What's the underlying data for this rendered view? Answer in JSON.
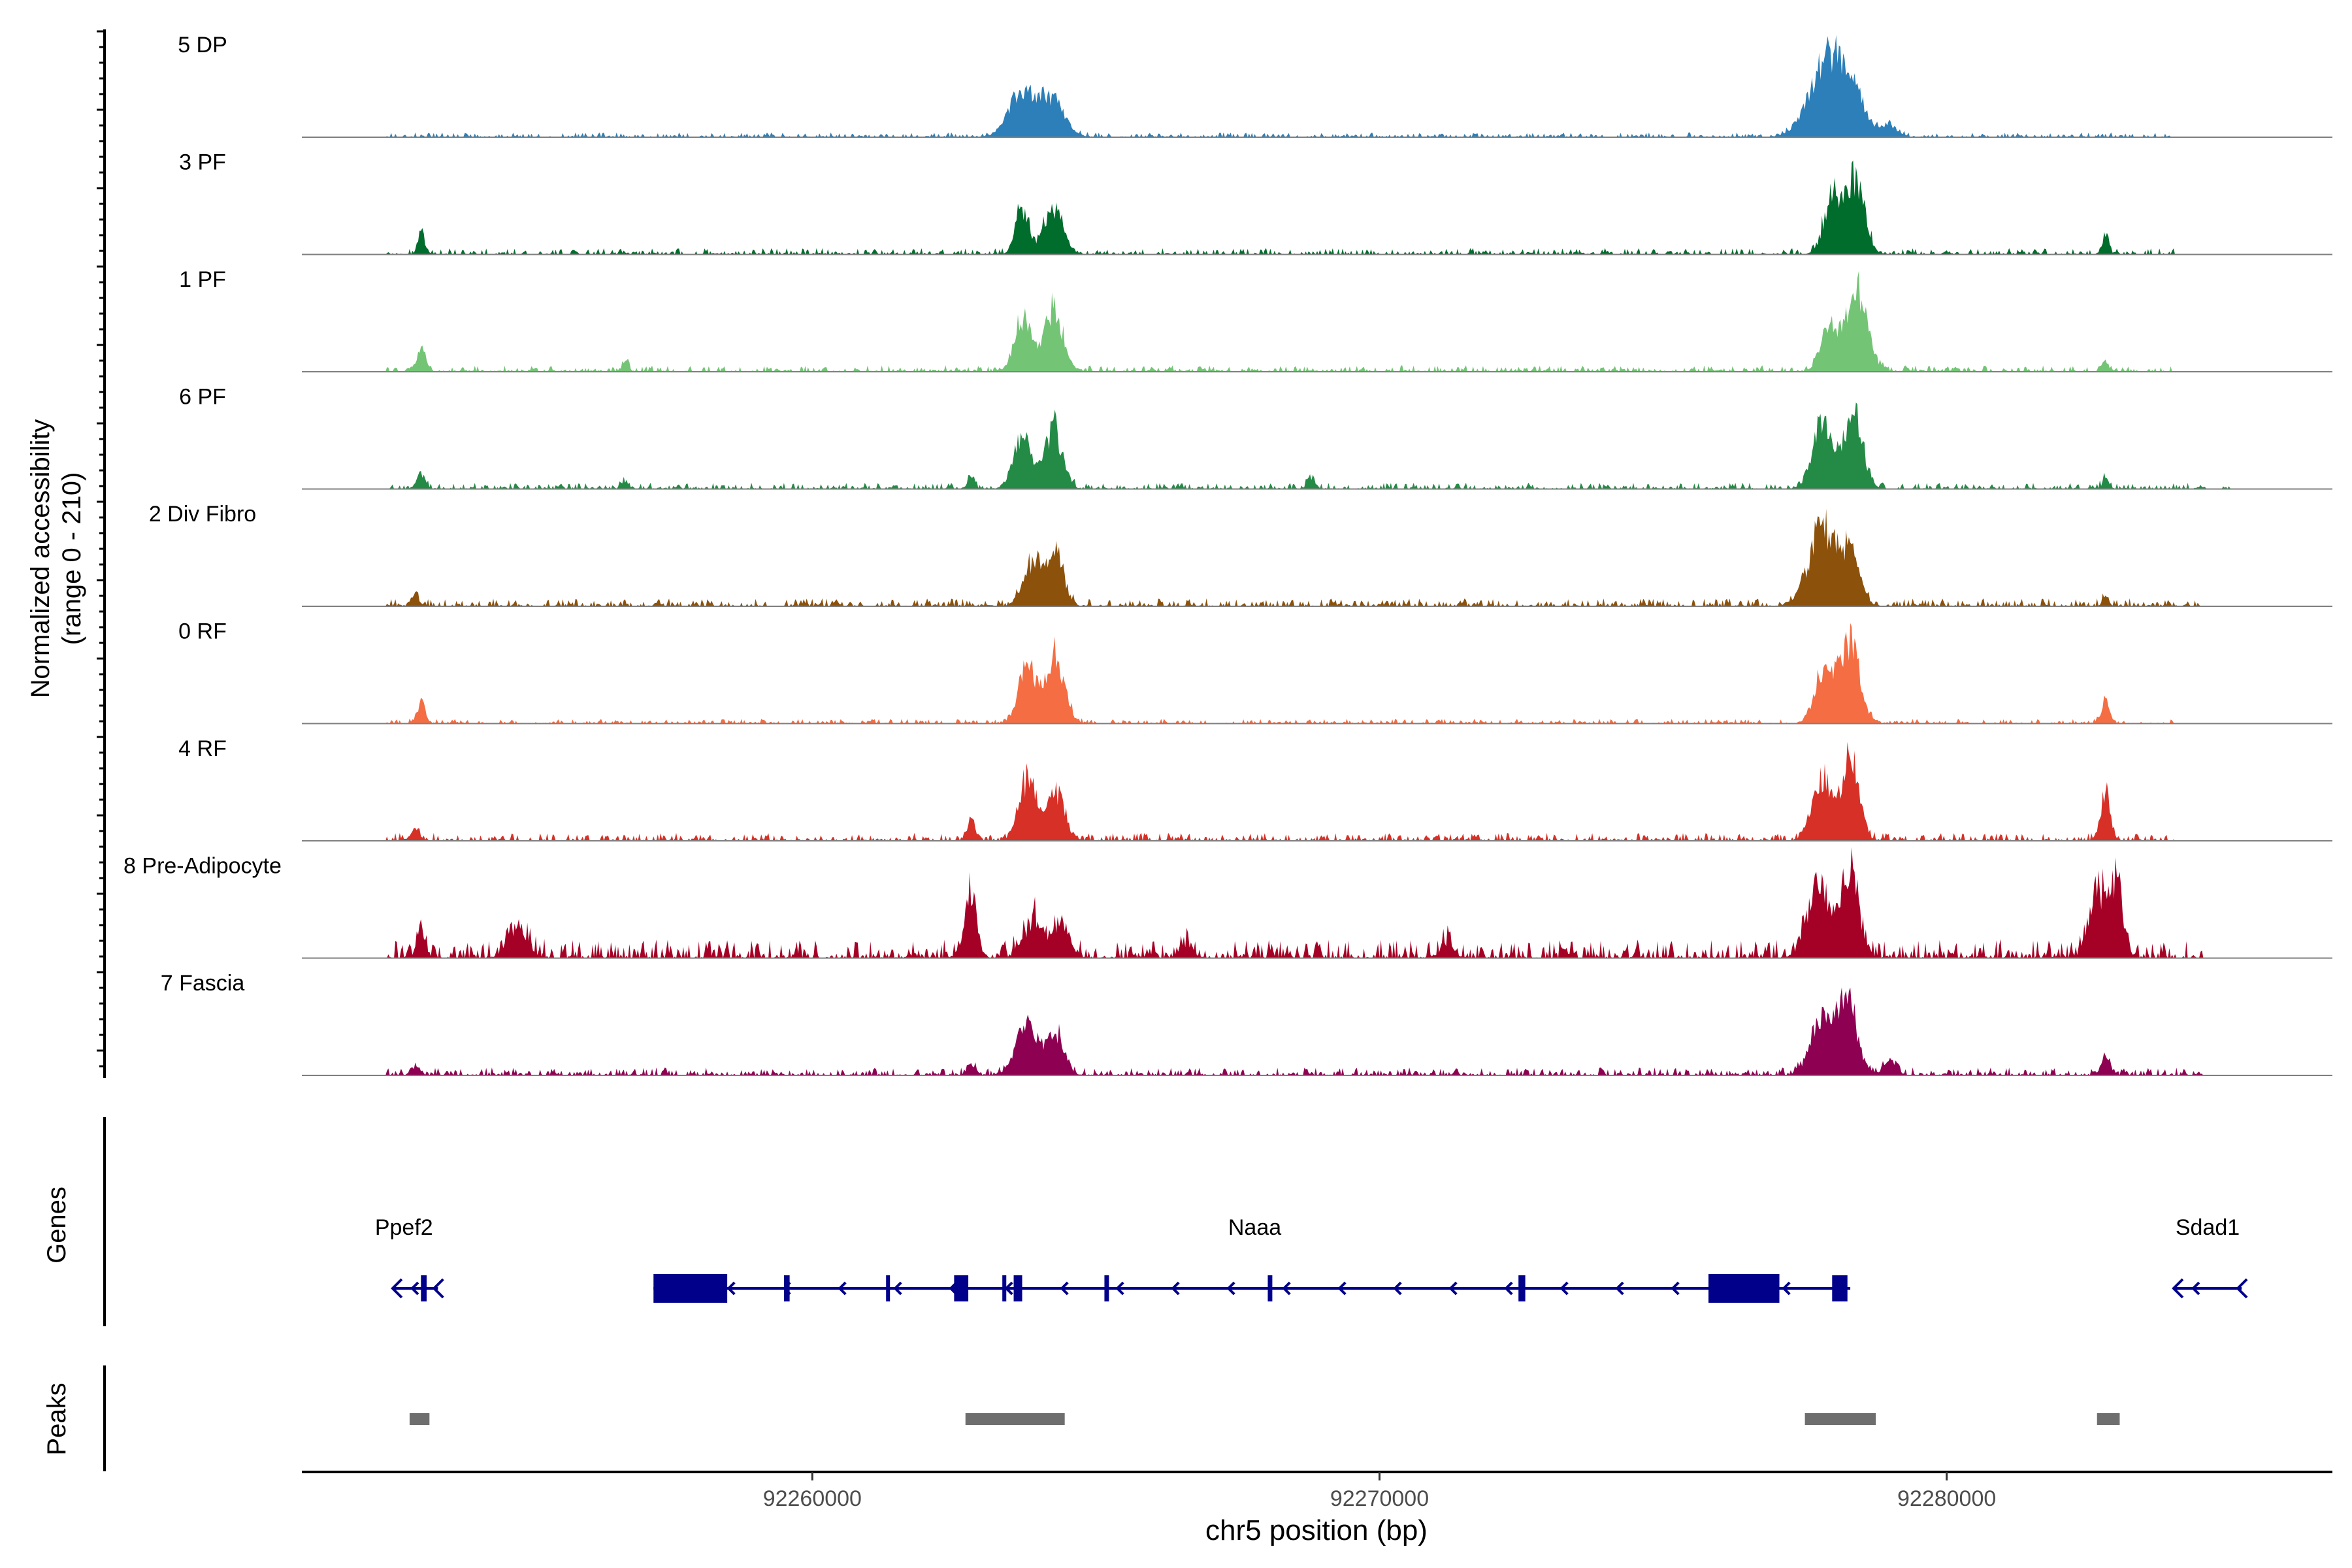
{
  "chart_data": {
    "type": "area",
    "title": "",
    "ylabel_line1": "Normalized accessibility",
    "ylabel_line2": "(range 0 - 210)",
    "xlabel": "chr5 position (bp)",
    "xlim": [
      92251000,
      92286800
    ],
    "ylim": [
      0,
      210
    ],
    "x_ticks": [
      92260000,
      92270000,
      92280000
    ],
    "x_tick_labels": [
      "92260000",
      "92270000",
      "92280000"
    ],
    "tracks": [
      {
        "name": "5 DP",
        "color": "#2c7fb8",
        "peaks": [
          [
            92263700,
            85,
            100
          ],
          [
            92264200,
            80,
            90
          ],
          [
            92277850,
            105,
            150
          ],
          [
            92278250,
            95,
            120
          ],
          [
            92279000,
            45,
            25
          ]
        ],
        "noise_start": 92252500,
        "noise_end": 92284000,
        "noise_level": 3,
        "seed": 11
      },
      {
        "name": "3 PF",
        "color": "#006d2c",
        "peaks": [
          [
            92253100,
            20,
            60
          ],
          [
            92263700,
            40,
            110
          ],
          [
            92264250,
            60,
            110
          ],
          [
            92278000,
            55,
            150
          ],
          [
            92278400,
            55,
            180
          ],
          [
            92282800,
            20,
            50
          ]
        ],
        "noise_start": 92252500,
        "noise_end": 92284000,
        "noise_level": 4,
        "seed": 23
      },
      {
        "name": "1 PF",
        "color": "#74c476",
        "peaks": [
          [
            92253100,
            30,
            45
          ],
          [
            92256700,
            20,
            25
          ],
          [
            92263700,
            50,
            130
          ],
          [
            92264250,
            60,
            150
          ],
          [
            92277900,
            50,
            100
          ],
          [
            92278400,
            70,
            190
          ],
          [
            92282800,
            20,
            25
          ]
        ],
        "noise_start": 92252500,
        "noise_end": 92284000,
        "noise_level": 4,
        "seed": 37
      },
      {
        "name": "6 PF",
        "color": "#238b45",
        "peaks": [
          [
            92253100,
            25,
            40
          ],
          [
            92256700,
            20,
            20
          ],
          [
            92262800,
            20,
            30
          ],
          [
            92263700,
            55,
            120
          ],
          [
            92264250,
            55,
            150
          ],
          [
            92268800,
            25,
            25
          ],
          [
            92277800,
            60,
            150
          ],
          [
            92278350,
            60,
            180
          ],
          [
            92282800,
            20,
            25
          ]
        ],
        "noise_start": 92252500,
        "noise_end": 92285000,
        "noise_level": 4,
        "seed": 41
      },
      {
        "name": "2 Div Fibro",
        "color": "#8c510a",
        "peaks": [
          [
            92253000,
            25,
            30
          ],
          [
            92263900,
            60,
            110
          ],
          [
            92264300,
            50,
            120
          ],
          [
            92277850,
            95,
            190
          ],
          [
            92278350,
            50,
            110
          ],
          [
            92282800,
            20,
            20
          ]
        ],
        "noise_start": 92252500,
        "noise_end": 92284500,
        "noise_level": 5,
        "seed": 53
      },
      {
        "name": "0 RF",
        "color": "#f46d43",
        "peaks": [
          [
            92253100,
            25,
            50
          ],
          [
            92263800,
            55,
            150
          ],
          [
            92264300,
            55,
            160
          ],
          [
            92277850,
            60,
            130
          ],
          [
            92278300,
            60,
            190
          ],
          [
            92282800,
            25,
            60
          ]
        ],
        "noise_start": 92252500,
        "noise_end": 92284000,
        "noise_level": 3,
        "seed": 67
      },
      {
        "name": "4 RF",
        "color": "#d73027",
        "peaks": [
          [
            92253000,
            30,
            25
          ],
          [
            92262800,
            25,
            50
          ],
          [
            92263800,
            55,
            150
          ],
          [
            92264300,
            55,
            110
          ],
          [
            92277800,
            60,
            150
          ],
          [
            92278300,
            55,
            190
          ],
          [
            92282800,
            30,
            110
          ]
        ],
        "noise_start": 92252500,
        "noise_end": 92284000,
        "noise_level": 5,
        "seed": 71
      },
      {
        "name": "8 Pre-Adipocyte",
        "color": "#a50026",
        "peaks": [
          [
            92253100,
            25,
            60
          ],
          [
            92254800,
            60,
            70
          ],
          [
            92262800,
            35,
            150
          ],
          [
            92263900,
            60,
            90
          ],
          [
            92264400,
            50,
            80
          ],
          [
            92266600,
            40,
            35
          ],
          [
            92271200,
            40,
            35
          ],
          [
            92277750,
            70,
            170
          ],
          [
            92278300,
            55,
            210
          ],
          [
            92282650,
            50,
            170
          ],
          [
            92283000,
            40,
            180
          ]
        ],
        "noise_start": 92252500,
        "noise_end": 92284500,
        "noise_level": 12,
        "seed": 83
      },
      {
        "name": "7 Fascia",
        "color": "#8e0152",
        "peaks": [
          [
            92253000,
            25,
            20
          ],
          [
            92262800,
            25,
            25
          ],
          [
            92263800,
            70,
            120
          ],
          [
            92264300,
            50,
            100
          ],
          [
            92277800,
            70,
            130
          ],
          [
            92278250,
            60,
            180
          ],
          [
            92279000,
            40,
            30
          ],
          [
            92282800,
            30,
            40
          ]
        ],
        "noise_start": 92252500,
        "noise_end": 92284500,
        "noise_level": 5,
        "seed": 97
      }
    ],
    "genes_panel_label": "Genes",
    "peaks_panel_label": "Peaks",
    "genes": [
      {
        "name": "Ppef2",
        "start": 92252600,
        "end": 92253400,
        "label_x": 92252800,
        "direction": "left",
        "exons": [
          [
            92253100,
            92253200
          ]
        ]
      },
      {
        "name": "Naaa",
        "start": 92257200,
        "end": 92278300,
        "label_x": 92267800,
        "direction": "left",
        "exons": [
          [
            92257200,
            92258500
          ],
          [
            92259500,
            92259600
          ],
          [
            92261300,
            92261340
          ],
          [
            92262500,
            92262750
          ],
          [
            92263350,
            92263420
          ],
          [
            92263550,
            92263700
          ],
          [
            92265150,
            92265230
          ],
          [
            92268030,
            92268110
          ],
          [
            92272450,
            92272570
          ],
          [
            92275800,
            92277050
          ],
          [
            92277980,
            92278250
          ]
        ]
      },
      {
        "name": "Sdad1",
        "start": 92284000,
        "end": 92285200,
        "label_x": 92284600,
        "direction": "left",
        "exons": []
      }
    ],
    "peaks": [
      [
        92252900,
        92253250
      ],
      [
        92262700,
        92264450
      ],
      [
        92277500,
        92278750
      ],
      [
        92282650,
        92283050
      ]
    ],
    "colors": {
      "gene": "#00008b",
      "peak": "#6e6e6e",
      "baseline": "#7f7f7f",
      "axis": "#000000"
    }
  }
}
